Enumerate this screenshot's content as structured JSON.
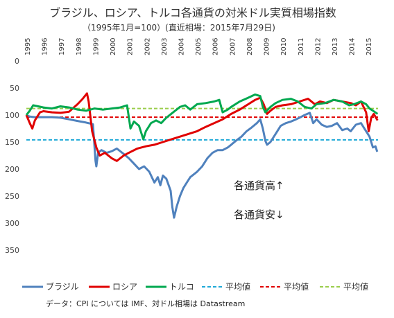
{
  "chart_data": {
    "type": "line",
    "title": "ブラジル、ロシア、トルコ各通貨の対米ドル実質相場指数",
    "subtitle": "（1995年1月=100）(直近相場：2015年7月29日)",
    "x_ticks": [
      "1995",
      "1996",
      "1997",
      "1998",
      "1999",
      "2000",
      "2001",
      "2002",
      "2003",
      "2004",
      "2005",
      "2006",
      "2007",
      "2008",
      "2009",
      "2010",
      "2011",
      "2012",
      "2013",
      "2014",
      "2015"
    ],
    "y_ticks": [
      0,
      50,
      100,
      150,
      200,
      250,
      300,
      350
    ],
    "ylim": [
      0,
      400
    ],
    "y_reversed": true,
    "grid": false,
    "series": [
      {
        "name": "ブラジル",
        "color": "#4f81bd",
        "style": "solid",
        "points": [
          [
            1995.0,
            100
          ],
          [
            1995.2,
            103
          ],
          [
            1995.5,
            104
          ],
          [
            1996.0,
            104
          ],
          [
            1996.5,
            104
          ],
          [
            1997.0,
            105
          ],
          [
            1997.5,
            108
          ],
          [
            1998.0,
            111
          ],
          [
            1998.5,
            114
          ],
          [
            1998.9,
            117
          ],
          [
            1999.05,
            185
          ],
          [
            1999.1,
            195
          ],
          [
            1999.2,
            170
          ],
          [
            1999.4,
            165
          ],
          [
            1999.7,
            170
          ],
          [
            2000.0,
            167
          ],
          [
            2000.3,
            162
          ],
          [
            2000.7,
            172
          ],
          [
            2001.0,
            180
          ],
          [
            2001.3,
            190
          ],
          [
            2001.6,
            200
          ],
          [
            2001.9,
            195
          ],
          [
            2002.2,
            205
          ],
          [
            2002.5,
            225
          ],
          [
            2002.7,
            215
          ],
          [
            2002.85,
            230
          ],
          [
            2003.0,
            212
          ],
          [
            2003.2,
            218
          ],
          [
            2003.45,
            240
          ],
          [
            2003.55,
            270
          ],
          [
            2003.65,
            290
          ],
          [
            2003.8,
            270
          ],
          [
            2004.0,
            250
          ],
          [
            2004.2,
            235
          ],
          [
            2004.4,
            225
          ],
          [
            2004.6,
            215
          ],
          [
            2004.8,
            210
          ],
          [
            2005.0,
            205
          ],
          [
            2005.3,
            195
          ],
          [
            2005.6,
            180
          ],
          [
            2005.9,
            170
          ],
          [
            2006.2,
            165
          ],
          [
            2006.5,
            165
          ],
          [
            2006.8,
            160
          ],
          [
            2007.0,
            155
          ],
          [
            2007.3,
            147
          ],
          [
            2007.6,
            140
          ],
          [
            2007.9,
            130
          ],
          [
            2008.2,
            123
          ],
          [
            2008.5,
            115
          ],
          [
            2008.7,
            108
          ],
          [
            2008.85,
            125
          ],
          [
            2009.0,
            148
          ],
          [
            2009.1,
            155
          ],
          [
            2009.3,
            150
          ],
          [
            2009.6,
            135
          ],
          [
            2009.9,
            120
          ],
          [
            2010.2,
            115
          ],
          [
            2010.5,
            112
          ],
          [
            2010.8,
            108
          ],
          [
            2011.0,
            105
          ],
          [
            2011.3,
            100
          ],
          [
            2011.6,
            96
          ],
          [
            2011.8,
            115
          ],
          [
            2012.0,
            108
          ],
          [
            2012.3,
            118
          ],
          [
            2012.6,
            122
          ],
          [
            2012.9,
            120
          ],
          [
            2013.2,
            115
          ],
          [
            2013.5,
            128
          ],
          [
            2013.8,
            125
          ],
          [
            2014.0,
            130
          ],
          [
            2014.3,
            118
          ],
          [
            2014.6,
            115
          ],
          [
            2014.9,
            130
          ],
          [
            2015.1,
            140
          ],
          [
            2015.3,
            160
          ],
          [
            2015.45,
            158
          ],
          [
            2015.55,
            168
          ]
        ]
      },
      {
        "name": "ロシア",
        "color": "#e00000",
        "style": "solid",
        "points": [
          [
            1995.0,
            100
          ],
          [
            1995.2,
            115
          ],
          [
            1995.35,
            125
          ],
          [
            1995.5,
            110
          ],
          [
            1995.8,
            95
          ],
          [
            1996.0,
            93
          ],
          [
            1996.5,
            95
          ],
          [
            1997.0,
            96
          ],
          [
            1997.5,
            94
          ],
          [
            1998.0,
            80
          ],
          [
            1998.3,
            70
          ],
          [
            1998.55,
            60
          ],
          [
            1998.65,
            75
          ],
          [
            1998.85,
            130
          ],
          [
            1999.1,
            160
          ],
          [
            1999.3,
            175
          ],
          [
            1999.6,
            170
          ],
          [
            2000.0,
            180
          ],
          [
            2000.3,
            185
          ],
          [
            2000.7,
            175
          ],
          [
            2001.0,
            170
          ],
          [
            2001.5,
            162
          ],
          [
            2002.0,
            158
          ],
          [
            2002.5,
            155
          ],
          [
            2003.0,
            150
          ],
          [
            2003.5,
            145
          ],
          [
            2004.0,
            140
          ],
          [
            2004.5,
            135
          ],
          [
            2005.0,
            130
          ],
          [
            2005.5,
            122
          ],
          [
            2006.0,
            115
          ],
          [
            2006.5,
            108
          ],
          [
            2007.0,
            98
          ],
          [
            2007.5,
            90
          ],
          [
            2008.0,
            80
          ],
          [
            2008.4,
            72
          ],
          [
            2008.7,
            68
          ],
          [
            2008.9,
            80
          ],
          [
            2009.1,
            98
          ],
          [
            2009.3,
            92
          ],
          [
            2009.6,
            85
          ],
          [
            2010.0,
            82
          ],
          [
            2010.5,
            80
          ],
          [
            2011.0,
            75
          ],
          [
            2011.5,
            70
          ],
          [
            2011.9,
            80
          ],
          [
            2012.2,
            75
          ],
          [
            2012.6,
            78
          ],
          [
            2013.0,
            72
          ],
          [
            2013.5,
            75
          ],
          [
            2014.0,
            78
          ],
          [
            2014.3,
            82
          ],
          [
            2014.6,
            75
          ],
          [
            2014.9,
            95
          ],
          [
            2015.05,
            130
          ],
          [
            2015.2,
            105
          ],
          [
            2015.35,
            98
          ],
          [
            2015.5,
            106
          ],
          [
            2015.57,
            110
          ]
        ]
      },
      {
        "name": "トルコ",
        "color": "#00a84f",
        "style": "solid",
        "points": [
          [
            1995.0,
            100
          ],
          [
            1995.2,
            92
          ],
          [
            1995.4,
            82
          ],
          [
            1995.7,
            84
          ],
          [
            1996.0,
            86
          ],
          [
            1996.5,
            88
          ],
          [
            1997.0,
            84
          ],
          [
            1997.5,
            86
          ],
          [
            1998.0,
            90
          ],
          [
            1998.5,
            92
          ],
          [
            1999.0,
            88
          ],
          [
            1999.5,
            90
          ],
          [
            2000.0,
            88
          ],
          [
            2000.5,
            86
          ],
          [
            2000.9,
            82
          ],
          [
            2001.1,
            125
          ],
          [
            2001.3,
            112
          ],
          [
            2001.6,
            120
          ],
          [
            2001.85,
            145
          ],
          [
            2002.0,
            130
          ],
          [
            2002.3,
            115
          ],
          [
            2002.6,
            110
          ],
          [
            2002.9,
            115
          ],
          [
            2003.2,
            105
          ],
          [
            2003.6,
            95
          ],
          [
            2004.0,
            85
          ],
          [
            2004.3,
            82
          ],
          [
            2004.6,
            90
          ],
          [
            2005.0,
            80
          ],
          [
            2005.5,
            78
          ],
          [
            2006.0,
            75
          ],
          [
            2006.3,
            72
          ],
          [
            2006.5,
            95
          ],
          [
            2006.8,
            90
          ],
          [
            2007.0,
            85
          ],
          [
            2007.5,
            75
          ],
          [
            2008.0,
            68
          ],
          [
            2008.4,
            62
          ],
          [
            2008.7,
            65
          ],
          [
            2008.85,
            85
          ],
          [
            2009.0,
            95
          ],
          [
            2009.3,
            85
          ],
          [
            2009.6,
            78
          ],
          [
            2010.0,
            72
          ],
          [
            2010.5,
            70
          ],
          [
            2010.9,
            75
          ],
          [
            2011.3,
            85
          ],
          [
            2011.7,
            88
          ],
          [
            2012.0,
            80
          ],
          [
            2012.5,
            78
          ],
          [
            2013.0,
            72
          ],
          [
            2013.5,
            75
          ],
          [
            2013.9,
            82
          ],
          [
            2014.2,
            80
          ],
          [
            2014.6,
            75
          ],
          [
            2014.9,
            80
          ],
          [
            2015.1,
            88
          ],
          [
            2015.3,
            92
          ],
          [
            2015.57,
            98
          ]
        ]
      },
      {
        "name": "平均値",
        "color": "#1fa9d8",
        "style": "dashed",
        "values": [
          146,
          146
        ]
      },
      {
        "name": "平均値",
        "color": "#e00000",
        "style": "dashed",
        "values": [
          104,
          104
        ]
      },
      {
        "name": "平均値",
        "color": "#9acd4c",
        "style": "dashed",
        "values": [
          88,
          88
        ]
      }
    ],
    "annotations": [
      "各通貨高↑",
      "各通貨安↓"
    ],
    "note": "データ：CPI については IMF、対ドル相場は Datastream"
  }
}
